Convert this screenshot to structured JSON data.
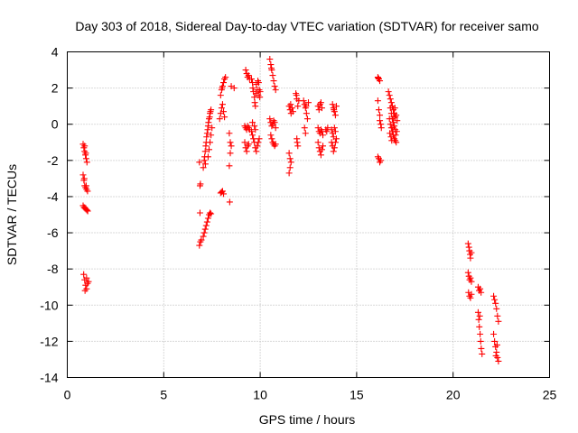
{
  "chart_data": {
    "type": "scatter",
    "title": "Day 303 of 2018, Sidereal Day-to-day VTEC variation (SDTVAR) for receiver samo",
    "xlabel": "GPS time / hours",
    "ylabel": "SDTVAR / TECUs",
    "xlim": [
      0,
      25
    ],
    "ylim": [
      -14,
      4
    ],
    "xticks": [
      0,
      5,
      10,
      15,
      20,
      25
    ],
    "yticks": [
      -14,
      -12,
      -10,
      -8,
      -6,
      -4,
      -2,
      0,
      2,
      4
    ],
    "grid": true,
    "marker": "plus",
    "color": "#ff0000",
    "series": [
      {
        "name": "SDTVAR",
        "points": [
          [
            0.82,
            -1.1
          ],
          [
            0.86,
            -1.3
          ],
          [
            0.9,
            -1.5
          ],
          [
            0.94,
            -1.7
          ],
          [
            0.98,
            -1.9
          ],
          [
            1.02,
            -2.1
          ],
          [
            0.9,
            -1.2
          ],
          [
            0.96,
            -1.6
          ],
          [
            0.82,
            -2.8
          ],
          [
            0.86,
            -3.1
          ],
          [
            0.9,
            -3.4
          ],
          [
            0.95,
            -3.5
          ],
          [
            1.0,
            -3.6
          ],
          [
            1.05,
            -3.7
          ],
          [
            0.88,
            -3.0
          ],
          [
            0.98,
            -3.4
          ],
          [
            0.82,
            -4.5
          ],
          [
            0.87,
            -4.6
          ],
          [
            0.92,
            -4.65
          ],
          [
            0.97,
            -4.7
          ],
          [
            1.02,
            -4.75
          ],
          [
            1.06,
            -4.8
          ],
          [
            0.9,
            -4.6
          ],
          [
            0.85,
            -8.3
          ],
          [
            0.9,
            -8.6
          ],
          [
            0.95,
            -8.9
          ],
          [
            1.0,
            -9.1
          ],
          [
            1.05,
            -8.8
          ],
          [
            1.1,
            -8.7
          ],
          [
            0.92,
            -9.2
          ],
          [
            1.0,
            -8.5
          ],
          [
            6.85,
            -6.7
          ],
          [
            6.9,
            -6.5
          ],
          [
            6.95,
            -6.4
          ],
          [
            6.88,
            -4.9
          ],
          [
            6.88,
            -3.4
          ],
          [
            6.9,
            -3.3
          ],
          [
            6.85,
            -2.1
          ],
          [
            7.05,
            -6.2
          ],
          [
            7.1,
            -6.0
          ],
          [
            7.15,
            -5.8
          ],
          [
            7.2,
            -5.6
          ],
          [
            7.25,
            -5.4
          ],
          [
            7.3,
            -5.2
          ],
          [
            7.35,
            -5.0
          ],
          [
            7.4,
            -4.9
          ],
          [
            7.45,
            -4.95
          ],
          [
            7.05,
            -2.4
          ],
          [
            7.1,
            -2.0
          ],
          [
            7.15,
            -1.5
          ],
          [
            7.2,
            -1.0
          ],
          [
            7.25,
            -0.5
          ],
          [
            7.3,
            -0.1
          ],
          [
            7.35,
            0.3
          ],
          [
            7.4,
            0.6
          ],
          [
            7.45,
            0.8
          ],
          [
            7.12,
            -1.8
          ],
          [
            7.18,
            -1.2
          ],
          [
            7.22,
            -0.7
          ],
          [
            7.28,
            -0.3
          ],
          [
            7.32,
            0.1
          ],
          [
            7.38,
            0.4
          ],
          [
            7.42,
            0.7
          ],
          [
            7.16,
            -2.2
          ],
          [
            7.3,
            -1.8
          ],
          [
            7.35,
            -1.4
          ],
          [
            7.4,
            -1.0
          ],
          [
            7.45,
            -0.6
          ],
          [
            7.5,
            -0.2
          ],
          [
            7.95,
            -3.8
          ],
          [
            8.0,
            -3.75
          ],
          [
            8.05,
            -3.7
          ],
          [
            8.1,
            -3.85
          ],
          [
            7.9,
            0.3
          ],
          [
            7.95,
            0.6
          ],
          [
            8.0,
            0.9
          ],
          [
            8.05,
            1.1
          ],
          [
            8.1,
            0.7
          ],
          [
            8.15,
            0.4
          ],
          [
            7.95,
            1.6
          ],
          [
            8.0,
            1.9
          ],
          [
            8.05,
            2.1
          ],
          [
            8.1,
            2.3
          ],
          [
            8.15,
            2.5
          ],
          [
            8.2,
            2.6
          ],
          [
            8.02,
            2.0
          ],
          [
            8.4,
            -0.5
          ],
          [
            8.45,
            -1.0
          ],
          [
            8.5,
            -1.2
          ],
          [
            8.45,
            -1.6
          ],
          [
            8.4,
            -2.3
          ],
          [
            8.42,
            -4.3
          ],
          [
            8.5,
            2.1
          ],
          [
            8.65,
            2.0
          ],
          [
            9.25,
            3.0
          ],
          [
            9.3,
            2.8
          ],
          [
            9.35,
            2.6
          ],
          [
            9.4,
            2.7
          ],
          [
            9.45,
            2.5
          ],
          [
            9.2,
            -0.1
          ],
          [
            9.25,
            -0.2
          ],
          [
            9.3,
            -0.3
          ],
          [
            9.35,
            -0.1
          ],
          [
            9.4,
            -0.2
          ],
          [
            9.45,
            -0.3
          ],
          [
            9.2,
            -1.0
          ],
          [
            9.25,
            -1.3
          ],
          [
            9.3,
            -1.5
          ],
          [
            9.35,
            -1.2
          ],
          [
            9.4,
            -1.1
          ],
          [
            9.55,
            2.5
          ],
          [
            9.6,
            2.3
          ],
          [
            9.62,
            2.0
          ],
          [
            9.65,
            1.8
          ],
          [
            9.7,
            1.5
          ],
          [
            9.72,
            1.2
          ],
          [
            9.75,
            1.0
          ],
          [
            9.8,
            2.2
          ],
          [
            9.85,
            1.9
          ],
          [
            9.9,
            1.6
          ],
          [
            9.92,
            2.3
          ],
          [
            9.95,
            1.9
          ],
          [
            9.98,
            1.5
          ],
          [
            10.0,
            1.8
          ],
          [
            9.88,
            2.4
          ],
          [
            9.78,
            1.7
          ],
          [
            9.55,
            -0.4
          ],
          [
            9.6,
            -0.6
          ],
          [
            9.65,
            -0.8
          ],
          [
            9.7,
            -1.0
          ],
          [
            9.75,
            -1.3
          ],
          [
            9.8,
            -1.5
          ],
          [
            9.85,
            -1.2
          ],
          [
            9.9,
            -1.0
          ],
          [
            9.95,
            -0.8
          ],
          [
            9.6,
            0.1
          ],
          [
            9.7,
            -0.1
          ],
          [
            9.75,
            -0.3
          ],
          [
            10.5,
            3.6
          ],
          [
            10.55,
            3.3
          ],
          [
            10.6,
            3.0
          ],
          [
            10.65,
            2.7
          ],
          [
            10.7,
            2.4
          ],
          [
            10.75,
            2.1
          ],
          [
            10.8,
            1.9
          ],
          [
            10.58,
            3.1
          ],
          [
            10.5,
            0.3
          ],
          [
            10.55,
            0.1
          ],
          [
            10.6,
            -0.1
          ],
          [
            10.65,
            0.0
          ],
          [
            10.7,
            0.2
          ],
          [
            10.75,
            0.1
          ],
          [
            10.8,
            -0.2
          ],
          [
            10.55,
            -0.6
          ],
          [
            10.6,
            -0.8
          ],
          [
            10.65,
            -1.0
          ],
          [
            10.7,
            -1.1
          ],
          [
            10.75,
            -1.2
          ],
          [
            10.8,
            -1.1
          ],
          [
            11.5,
            1.0
          ],
          [
            11.55,
            0.8
          ],
          [
            11.6,
            0.6
          ],
          [
            11.65,
            0.9
          ],
          [
            11.7,
            0.7
          ],
          [
            11.58,
            1.1
          ],
          [
            11.5,
            -1.6
          ],
          [
            11.55,
            -1.9
          ],
          [
            11.6,
            -2.1
          ],
          [
            11.55,
            -2.4
          ],
          [
            11.5,
            -2.7
          ],
          [
            11.85,
            1.7
          ],
          [
            11.9,
            1.4
          ],
          [
            11.95,
            1.0
          ],
          [
            12.0,
            1.3
          ],
          [
            11.88,
            1.6
          ],
          [
            11.9,
            -0.8
          ],
          [
            11.92,
            -1.0
          ],
          [
            11.95,
            -1.2
          ],
          [
            12.25,
            1.3
          ],
          [
            12.3,
            1.1
          ],
          [
            12.35,
            0.9
          ],
          [
            12.4,
            0.6
          ],
          [
            12.45,
            0.3
          ],
          [
            12.5,
            1.2
          ],
          [
            12.38,
            1.0
          ],
          [
            12.3,
            -0.2
          ],
          [
            12.35,
            -0.5
          ],
          [
            13.0,
            1.0
          ],
          [
            13.05,
            0.8
          ],
          [
            13.1,
            1.1
          ],
          [
            13.15,
            1.2
          ],
          [
            13.2,
            0.9
          ],
          [
            13.0,
            -0.2
          ],
          [
            13.05,
            -0.4
          ],
          [
            13.1,
            -0.5
          ],
          [
            13.15,
            -0.3
          ],
          [
            13.2,
            -0.4
          ],
          [
            13.25,
            -0.6
          ],
          [
            13.0,
            -1.0
          ],
          [
            13.05,
            -1.3
          ],
          [
            13.1,
            -1.5
          ],
          [
            13.15,
            -1.7
          ],
          [
            13.2,
            -1.4
          ],
          [
            13.25,
            -1.2
          ],
          [
            13.4,
            -0.3
          ],
          [
            13.45,
            -0.4
          ],
          [
            13.5,
            -0.2
          ],
          [
            13.75,
            1.1
          ],
          [
            13.8,
            0.9
          ],
          [
            13.85,
            0.7
          ],
          [
            13.9,
            0.5
          ],
          [
            13.95,
            1.0
          ],
          [
            13.82,
            0.8
          ],
          [
            13.7,
            -0.3
          ],
          [
            13.75,
            -0.5
          ],
          [
            13.8,
            -0.7
          ],
          [
            13.85,
            -0.2
          ],
          [
            13.9,
            -0.4
          ],
          [
            13.7,
            -1.0
          ],
          [
            13.75,
            -1.2
          ],
          [
            13.8,
            -1.5
          ],
          [
            13.85,
            -1.3
          ],
          [
            13.9,
            -1.0
          ],
          [
            13.95,
            -0.8
          ],
          [
            16.1,
            2.6
          ],
          [
            16.15,
            2.5
          ],
          [
            16.2,
            2.4
          ],
          [
            16.12,
            2.55
          ],
          [
            16.1,
            1.3
          ],
          [
            16.15,
            0.8
          ],
          [
            16.2,
            0.5
          ],
          [
            16.25,
            0.0
          ],
          [
            16.28,
            -0.2
          ],
          [
            16.2,
            0.2
          ],
          [
            16.1,
            -1.8
          ],
          [
            16.15,
            -1.9
          ],
          [
            16.2,
            -2.1
          ],
          [
            16.25,
            -2.0
          ],
          [
            16.65,
            1.8
          ],
          [
            16.7,
            1.6
          ],
          [
            16.75,
            1.4
          ],
          [
            16.8,
            1.2
          ],
          [
            16.85,
            1.0
          ],
          [
            16.9,
            0.8
          ],
          [
            16.95,
            0.6
          ],
          [
            17.0,
            0.4
          ],
          [
            16.7,
            0.3
          ],
          [
            16.75,
            0.0
          ],
          [
            16.8,
            -0.2
          ],
          [
            16.85,
            -0.4
          ],
          [
            16.9,
            -0.6
          ],
          [
            16.95,
            -0.8
          ],
          [
            17.0,
            -0.9
          ],
          [
            17.05,
            -1.0
          ],
          [
            16.75,
            0.9
          ],
          [
            16.8,
            0.6
          ],
          [
            16.85,
            0.3
          ],
          [
            16.9,
            0.1
          ],
          [
            16.95,
            -0.1
          ],
          [
            17.0,
            -0.3
          ],
          [
            17.05,
            0.5
          ],
          [
            17.1,
            0.2
          ],
          [
            16.72,
            -0.5
          ],
          [
            16.78,
            -0.7
          ],
          [
            16.82,
            -0.9
          ],
          [
            16.88,
            -0.2
          ],
          [
            16.92,
            0.4
          ],
          [
            16.98,
            0.9
          ],
          [
            17.02,
            -0.6
          ],
          [
            17.08,
            -0.4
          ],
          [
            20.78,
            -6.6
          ],
          [
            20.82,
            -6.8
          ],
          [
            20.85,
            -7.0
          ],
          [
            20.88,
            -7.2
          ],
          [
            20.9,
            -7.4
          ],
          [
            20.95,
            -7.1
          ],
          [
            20.78,
            -8.2
          ],
          [
            20.82,
            -8.4
          ],
          [
            20.86,
            -8.6
          ],
          [
            20.9,
            -8.5
          ],
          [
            20.95,
            -8.7
          ],
          [
            20.8,
            -9.3
          ],
          [
            20.85,
            -9.5
          ],
          [
            20.9,
            -9.6
          ],
          [
            20.95,
            -9.4
          ],
          [
            21.3,
            -9.0
          ],
          [
            21.35,
            -9.2
          ],
          [
            21.4,
            -9.1
          ],
          [
            21.45,
            -9.3
          ],
          [
            21.3,
            -10.4
          ],
          [
            21.33,
            -10.8
          ],
          [
            21.36,
            -11.2
          ],
          [
            21.4,
            -11.6
          ],
          [
            21.43,
            -12.0
          ],
          [
            21.46,
            -12.4
          ],
          [
            21.5,
            -12.7
          ],
          [
            21.38,
            -10.6
          ],
          [
            22.1,
            -9.5
          ],
          [
            22.15,
            -9.7
          ],
          [
            22.2,
            -9.9
          ],
          [
            22.25,
            -10.2
          ],
          [
            22.3,
            -10.6
          ],
          [
            22.35,
            -10.9
          ],
          [
            22.1,
            -11.6
          ],
          [
            22.15,
            -12.0
          ],
          [
            22.2,
            -12.3
          ],
          [
            22.25,
            -12.6
          ],
          [
            22.3,
            -12.9
          ],
          [
            22.35,
            -13.1
          ],
          [
            22.22,
            -12.8
          ],
          [
            22.28,
            -12.2
          ]
        ]
      }
    ]
  }
}
